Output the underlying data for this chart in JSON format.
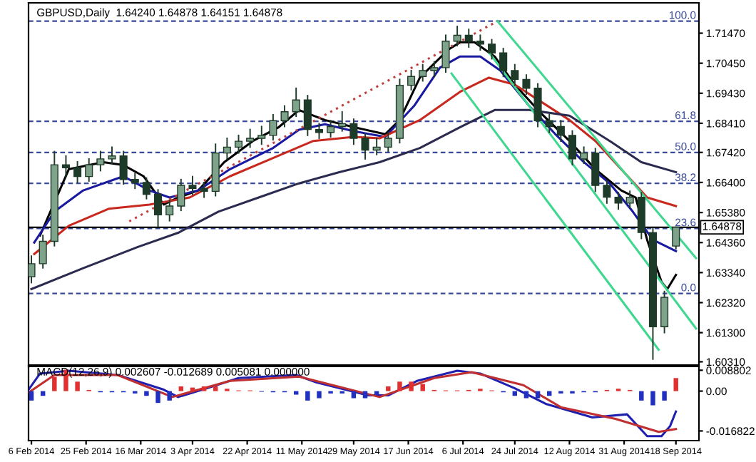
{
  "chart_data": [
    {
      "type": "candlestick",
      "title": "GBPUSD,Daily  1.64240 1.64878 1.64151 1.64878",
      "color": "#1e3a28",
      "x": [
        "2014-02-06",
        "2014-02-10",
        "2014-02-14",
        "2014-02-18",
        "2014-02-22",
        "2014-02-26",
        "2014-03-02",
        "2014-03-06",
        "2014-03-10",
        "2014-03-14",
        "2014-03-18",
        "2014-03-22",
        "2014-03-26",
        "2014-03-30",
        "2014-04-03",
        "2014-04-07",
        "2014-04-11",
        "2014-04-15",
        "2014-04-19",
        "2014-04-23",
        "2014-04-27",
        "2014-05-01",
        "2014-05-05",
        "2014-05-09",
        "2014-05-13",
        "2014-05-17",
        "2014-05-21",
        "2014-05-25",
        "2014-05-29",
        "2014-06-02",
        "2014-06-06",
        "2014-06-10",
        "2014-06-14",
        "2014-06-18",
        "2014-06-22",
        "2014-06-26",
        "2014-06-30",
        "2014-07-04",
        "2014-07-08",
        "2014-07-12",
        "2014-07-16",
        "2014-07-20",
        "2014-07-24",
        "2014-07-28",
        "2014-08-01",
        "2014-08-05",
        "2014-08-09",
        "2014-08-13",
        "2014-08-17",
        "2014-08-21",
        "2014-08-25",
        "2014-08-29",
        "2014-09-02",
        "2014-09-06",
        "2014-09-10",
        "2014-09-14",
        "2014-09-18"
      ],
      "ohlc": [
        [
          1.632,
          1.639,
          1.63,
          1.6364
        ],
        [
          1.6364,
          1.646,
          1.635,
          1.644
        ],
        [
          1.644,
          1.6745,
          1.6425,
          1.67
        ],
        [
          1.67,
          1.673,
          1.666,
          1.669
        ],
        [
          1.669,
          1.671,
          1.664,
          1.666
        ],
        [
          1.666,
          1.672,
          1.6645,
          1.67
        ],
        [
          1.67,
          1.6745,
          1.668,
          1.672
        ],
        [
          1.672,
          1.676,
          1.6705,
          1.673
        ],
        [
          1.673,
          1.6745,
          1.6635,
          1.665
        ],
        [
          1.665,
          1.667,
          1.662,
          1.664
        ],
        [
          1.664,
          1.6655,
          1.6585,
          1.66
        ],
        [
          1.66,
          1.6615,
          1.649,
          1.653
        ],
        [
          1.653,
          1.658,
          1.651,
          1.656
        ],
        [
          1.656,
          1.665,
          1.6545,
          1.663
        ],
        [
          1.663,
          1.666,
          1.66,
          1.662
        ],
        [
          1.662,
          1.664,
          1.659,
          1.661
        ],
        [
          1.661,
          1.677,
          1.6595,
          1.674
        ],
        [
          1.674,
          1.679,
          1.672,
          1.676
        ],
        [
          1.676,
          1.68,
          1.674,
          1.678
        ],
        [
          1.678,
          1.682,
          1.676,
          1.679
        ],
        [
          1.679,
          1.683,
          1.677,
          1.68
        ],
        [
          1.68,
          1.687,
          1.6785,
          1.685
        ],
        [
          1.685,
          1.69,
          1.683,
          1.688
        ],
        [
          1.688,
          1.696,
          1.6865,
          1.692
        ],
        [
          1.692,
          1.6935,
          1.68,
          1.682
        ],
        [
          1.682,
          1.684,
          1.679,
          1.681
        ],
        [
          1.681,
          1.685,
          1.6795,
          1.683
        ],
        [
          1.683,
          1.688,
          1.6815,
          1.684
        ],
        [
          1.684,
          1.6855,
          1.677,
          1.679
        ],
        [
          1.679,
          1.6805,
          1.672,
          1.675
        ],
        [
          1.675,
          1.679,
          1.6735,
          1.676
        ],
        [
          1.676,
          1.681,
          1.6745,
          1.679
        ],
        [
          1.679,
          1.699,
          1.6775,
          1.697
        ],
        [
          1.697,
          1.702,
          1.6955,
          1.7
        ],
        [
          1.7,
          1.704,
          1.6985,
          1.702
        ],
        [
          1.702,
          1.705,
          1.7,
          1.703
        ],
        [
          1.703,
          1.714,
          1.7015,
          1.712
        ],
        [
          1.712,
          1.717,
          1.7105,
          1.714
        ],
        [
          1.714,
          1.716,
          1.71,
          1.712
        ],
        [
          1.712,
          1.714,
          1.709,
          1.711
        ],
        [
          1.711,
          1.7125,
          1.706,
          1.708
        ],
        [
          1.708,
          1.7095,
          1.7,
          1.702
        ],
        [
          1.702,
          1.704,
          1.697,
          1.699
        ],
        [
          1.699,
          1.7005,
          1.694,
          1.696
        ],
        [
          1.696,
          1.6975,
          1.683,
          1.685
        ],
        [
          1.685,
          1.687,
          1.681,
          1.683
        ],
        [
          1.683,
          1.685,
          1.678,
          1.68
        ],
        [
          1.68,
          1.6815,
          1.67,
          1.672
        ],
        [
          1.672,
          1.676,
          1.6705,
          1.674
        ],
        [
          1.674,
          1.6755,
          1.661,
          1.663
        ],
        [
          1.663,
          1.6645,
          1.657,
          1.659
        ],
        [
          1.659,
          1.6605,
          1.655,
          1.657
        ],
        [
          1.657,
          1.661,
          1.6555,
          1.659
        ],
        [
          1.659,
          1.6605,
          1.645,
          1.647
        ],
        [
          1.647,
          1.6485,
          1.604,
          1.615
        ],
        [
          1.615,
          1.627,
          1.613,
          1.625
        ],
        [
          1.6424,
          1.64878,
          1.64151,
          1.64878
        ]
      ],
      "series": [
        {
          "type": "line",
          "color": "#000000",
          "x": [
            "2014-02-09",
            "2014-02-19",
            "2014-03-03",
            "2014-03-10",
            "2014-03-17",
            "2014-03-24",
            "2014-03-29",
            "2014-04-05",
            "2014-04-14",
            "2014-04-24",
            "2014-05-03",
            "2014-05-10",
            "2014-05-19",
            "2014-05-29",
            "2014-06-09",
            "2014-06-14",
            "2014-06-21",
            "2014-07-01",
            "2014-07-05",
            "2014-07-10",
            "2014-07-17",
            "2014-07-24",
            "2014-08-02",
            "2014-08-12",
            "2014-08-21",
            "2014-08-30",
            "2014-09-04",
            "2014-09-08",
            "2014-09-13",
            "2014-09-15",
            "2014-09-18"
          ],
          "values": [
            1.646,
            1.6685,
            1.6709,
            1.6699,
            1.6661,
            1.6565,
            1.6589,
            1.6613,
            1.6709,
            1.6781,
            1.6828,
            1.6886,
            1.6852,
            1.6828,
            1.6804,
            1.6852,
            1.6996,
            1.7092,
            1.7116,
            1.7116,
            1.7068,
            1.6972,
            1.6876,
            1.6781,
            1.6685,
            1.6613,
            1.6589,
            1.6445,
            1.6302,
            1.6278,
            1.6326
          ]
        },
        {
          "type": "line",
          "color": "#1a1aa0",
          "x": [
            "2014-02-07",
            "2014-02-14",
            "2014-02-24",
            "2014-03-10",
            "2014-03-19",
            "2014-03-26",
            "2014-04-05",
            "2014-04-16",
            "2014-05-01",
            "2014-05-10",
            "2014-05-19",
            "2014-05-29",
            "2014-06-09",
            "2014-06-19",
            "2014-06-28",
            "2014-07-05",
            "2014-07-12",
            "2014-07-19",
            "2014-07-29",
            "2014-08-07",
            "2014-08-17",
            "2014-08-26",
            "2014-09-03",
            "2014-09-10",
            "2014-09-18"
          ],
          "values": [
            1.6436,
            1.6541,
            1.6613,
            1.6661,
            1.6613,
            1.6589,
            1.6613,
            1.6685,
            1.6757,
            1.6819,
            1.6838,
            1.6814,
            1.6795,
            1.69,
            1.703,
            1.7068,
            1.7068,
            1.702,
            1.69,
            1.6805,
            1.6709,
            1.6637,
            1.6541,
            1.6445,
            1.6407
          ]
        },
        {
          "type": "line",
          "color": "#c8281e",
          "x": [
            "2014-02-07",
            "2014-02-19",
            "2014-03-05",
            "2014-03-19",
            "2014-04-02",
            "2014-04-16",
            "2014-05-01",
            "2014-05-15",
            "2014-05-29",
            "2014-06-07",
            "2014-06-21",
            "2014-07-05",
            "2014-07-15",
            "2014-07-24",
            "2014-08-02",
            "2014-08-12",
            "2014-08-21",
            "2014-08-30",
            "2014-09-08",
            "2014-09-18"
          ],
          "values": [
            1.6397,
            1.6493,
            1.6551,
            1.6565,
            1.6589,
            1.6661,
            1.6723,
            1.6781,
            1.6795,
            1.679,
            1.6852,
            1.6948,
            1.6996,
            1.6972,
            1.6915,
            1.6852,
            1.6781,
            1.6685,
            1.6589,
            1.656
          ]
        },
        {
          "type": "line",
          "color": "#2b2b4f",
          "x": [
            "2014-02-06",
            "2014-02-24",
            "2014-03-15",
            "2014-03-29",
            "2014-04-12",
            "2014-04-26",
            "2014-05-10",
            "2014-05-24",
            "2014-06-07",
            "2014-06-21",
            "2014-07-05",
            "2014-07-17",
            "2014-07-29",
            "2014-08-12",
            "2014-08-26",
            "2014-09-06",
            "2014-09-18"
          ],
          "values": [
            1.6278,
            1.6349,
            1.6421,
            1.6469,
            1.6541,
            1.6589,
            1.6637,
            1.6675,
            1.6709,
            1.6757,
            1.6828,
            1.6886,
            1.6886,
            1.6867,
            1.6781,
            1.6709,
            1.6675
          ]
        },
        {
          "type": "line",
          "color": "#c04040",
          "line_style": "dotted",
          "x": [
            "2014-03-12",
            "2014-07-18"
          ],
          "values": [
            1.6508,
            1.7188
          ]
        },
        {
          "type": "line",
          "color": "#40d890",
          "x": [
            "2014-07-18",
            "2014-09-25"
          ],
          "values": [
            1.7188,
            1.6383
          ]
        },
        {
          "type": "line",
          "color": "#40d890",
          "x": [
            "2014-07-15",
            "2014-09-25"
          ],
          "values": [
            1.7082,
            1.6144
          ]
        },
        {
          "type": "line",
          "color": "#40d890",
          "x": [
            "2014-07-02",
            "2014-09-12"
          ],
          "values": [
            1.701,
            1.6072
          ]
        }
      ],
      "ref_lines": [
        {
          "axis": "y",
          "value": 1.7188,
          "color": "#3a4a9a",
          "line_style": "dashed"
        },
        {
          "axis": "y",
          "value": 1.6848,
          "color": "#3a4a9a",
          "line_style": "dashed"
        },
        {
          "axis": "y",
          "value": 1.6742,
          "color": "#3a4a9a",
          "line_style": "dashed"
        },
        {
          "axis": "y",
          "value": 1.6637,
          "color": "#3a4a9a",
          "line_style": "dashed"
        },
        {
          "axis": "y",
          "value": 1.6484,
          "color": "#3a4a9a",
          "line_style": "dashed"
        },
        {
          "axis": "y",
          "value": 1.6263,
          "color": "#3a4a9a",
          "line_style": "dashed"
        },
        {
          "axis": "y",
          "value": 1.64878,
          "label": "1.64878",
          "color": "#000000",
          "line_style": "solid"
        }
      ],
      "annotations": [
        {
          "text": "100.0",
          "x": "2014-09-25",
          "y": 1.7188
        },
        {
          "text": "61.8",
          "x": "2014-09-25",
          "y": 1.6848
        },
        {
          "text": "50.0",
          "x": "2014-09-25",
          "y": 1.6742
        },
        {
          "text": "38.2",
          "x": "2014-09-25",
          "y": 1.6637
        },
        {
          "text": "23.6",
          "x": "2014-09-25",
          "y": 1.6484
        },
        {
          "text": "0.0",
          "x": "2014-09-25",
          "y": 1.6263
        }
      ],
      "xlim": [
        "2014-02-05",
        "2014-09-26"
      ],
      "ylim": [
        1.602,
        1.725
      ],
      "yticks": [
        {
          "value": 1.7147,
          "label": "1.71470"
        },
        {
          "value": 1.7045,
          "label": "1.70450"
        },
        {
          "value": 1.6943,
          "label": "1.69430"
        },
        {
          "value": 1.6841,
          "label": "1.68410"
        },
        {
          "value": 1.6742,
          "label": "1.67420"
        },
        {
          "value": 1.664,
          "label": "1.66400"
        },
        {
          "value": 1.6538,
          "label": "1.65380"
        },
        {
          "value": 1.6436,
          "label": "1.64360"
        },
        {
          "value": 1.6334,
          "label": "1.63340"
        },
        {
          "value": 1.6232,
          "label": "1.62320"
        },
        {
          "value": 1.613,
          "label": "1.61300"
        },
        {
          "value": 1.6031,
          "label": "1.60310"
        }
      ],
      "tick_labels": "y"
    },
    {
      "type": "bar",
      "title": "MACD(12,26,9) 0.002607 -0.012689 0.005081 0.000000",
      "x": [
        "2014-02-06",
        "2014-02-10",
        "2014-02-14",
        "2014-02-18",
        "2014-02-22",
        "2014-02-26",
        "2014-03-02",
        "2014-03-06",
        "2014-03-10",
        "2014-03-14",
        "2014-03-18",
        "2014-03-22",
        "2014-03-26",
        "2014-03-30",
        "2014-04-03",
        "2014-04-07",
        "2014-04-11",
        "2014-04-15",
        "2014-04-19",
        "2014-04-23",
        "2014-04-27",
        "2014-05-01",
        "2014-05-05",
        "2014-05-09",
        "2014-05-13",
        "2014-05-17",
        "2014-05-21",
        "2014-05-25",
        "2014-05-29",
        "2014-06-02",
        "2014-06-06",
        "2014-06-10",
        "2014-06-14",
        "2014-06-18",
        "2014-06-22",
        "2014-06-26",
        "2014-06-30",
        "2014-07-04",
        "2014-07-08",
        "2014-07-12",
        "2014-07-16",
        "2014-07-20",
        "2014-07-24",
        "2014-07-28",
        "2014-08-01",
        "2014-08-05",
        "2014-08-09",
        "2014-08-13",
        "2014-08-17",
        "2014-08-21",
        "2014-08-25",
        "2014-08-29",
        "2014-09-02",
        "2014-09-06",
        "2014-09-10",
        "2014-09-14",
        "2014-09-18"
      ],
      "values": [
        -0.004,
        -0.002,
        0.006,
        0.009,
        0.004,
        0.0005,
        -0.0005,
        -0.0005,
        -0.0005,
        -0.001,
        -0.002,
        -0.005,
        -0.004,
        0.002,
        0.0015,
        0.002,
        0.002,
        0.001,
        0.0003,
        0.0003,
        -0.0003,
        -0.0005,
        -0.0005,
        -0.0015,
        -0.004,
        -0.003,
        -0.001,
        -0.001,
        -0.003,
        -0.003,
        -0.0015,
        0.002,
        0.004,
        0.004,
        0.003,
        0.0005,
        0.0003,
        0.0003,
        0.0005,
        0.001,
        0.0003,
        -0.0005,
        -0.002,
        -0.003,
        -0.003,
        -0.002,
        -0.001,
        -0.001,
        -0.0005,
        -0.0005,
        0.0005,
        0.001,
        0.0005,
        -0.004,
        -0.006,
        -0.004,
        0.0055
      ],
      "colors": [
        "#2030c0",
        "#2030c0",
        "#e03030",
        "#e03030",
        "#e03030",
        "#e03030",
        "#2030c0",
        "#2030c0",
        "#2030c0",
        "#2030c0",
        "#2030c0",
        "#2030c0",
        "#2030c0",
        "#e03030",
        "#e03030",
        "#e03030",
        "#e03030",
        "#e03030",
        "#e03030",
        "#e03030",
        "#2030c0",
        "#2030c0",
        "#2030c0",
        "#2030c0",
        "#2030c0",
        "#2030c0",
        "#2030c0",
        "#2030c0",
        "#2030c0",
        "#2030c0",
        "#2030c0",
        "#e03030",
        "#e03030",
        "#e03030",
        "#e03030",
        "#e03030",
        "#e03030",
        "#e03030",
        "#e03030",
        "#e03030",
        "#e03030",
        "#2030c0",
        "#2030c0",
        "#2030c0",
        "#2030c0",
        "#2030c0",
        "#2030c0",
        "#2030c0",
        "#2030c0",
        "#2030c0",
        "#e03030",
        "#e03030",
        "#e03030",
        "#2030c0",
        "#2030c0",
        "#2030c0",
        "#e03030"
      ],
      "series": [
        {
          "type": "line",
          "color": "#2020b0",
          "x": [
            "2014-02-05",
            "2014-02-09",
            "2014-02-19",
            "2014-03-08",
            "2014-03-24",
            "2014-03-29",
            "2014-04-08",
            "2014-04-19",
            "2014-05-09",
            "2014-05-16",
            "2014-06-03",
            "2014-06-10",
            "2014-06-20",
            "2014-07-04",
            "2014-07-12",
            "2014-07-24",
            "2014-08-04",
            "2014-08-20",
            "2014-09-01",
            "2014-09-08",
            "2014-09-13",
            "2014-09-16",
            "2014-09-18"
          ],
          "values": [
            0.0006,
            0.0074,
            0.0086,
            0.0068,
            0.0006,
            -0.0025,
            0.0012,
            0.0055,
            0.0068,
            0.0037,
            -0.0018,
            -0.0018,
            0.0043,
            0.0086,
            0.0074,
            0.0012,
            -0.0055,
            -0.0111,
            -0.0098,
            -0.019,
            -0.019,
            -0.0147,
            -0.0086
          ]
        },
        {
          "type": "line",
          "color": "#c03030",
          "x": [
            "2014-02-05",
            "2014-02-14",
            "2014-03-08",
            "2014-03-27",
            "2014-04-16",
            "2014-05-10",
            "2014-06-07",
            "2014-06-26",
            "2014-07-09",
            "2014-07-27",
            "2014-08-09",
            "2014-08-28",
            "2014-09-12",
            "2014-09-18"
          ],
          "values": [
            -0.0006,
            0.0068,
            0.0068,
            -0.0025,
            0.0043,
            0.0061,
            -0.0025,
            0.0055,
            0.008,
            0.0025,
            -0.0068,
            -0.0117,
            -0.0172,
            -0.016
          ]
        }
      ],
      "xlim": [
        "2014-02-05",
        "2014-09-26"
      ],
      "ylim": [
        -0.0209,
        0.0104
      ],
      "yticks": [
        {
          "value": 0.008802,
          "label": "0.008802"
        },
        {
          "value": 0,
          "label": "0.00"
        },
        {
          "value": -0.016822,
          "label": "-0.016822"
        }
      ],
      "xticks": [
        {
          "value": "2014-02-06",
          "label": "6 Feb 2014"
        },
        {
          "value": "2014-02-25",
          "label": "25 Feb 2014"
        },
        {
          "value": "2014-03-16",
          "label": "16 Mar 2014"
        },
        {
          "value": "2014-04-03",
          "label": "3 Apr 2014"
        },
        {
          "value": "2014-04-22",
          "label": "22 Apr 2014"
        },
        {
          "value": "2014-05-11",
          "label": "11 May 2014"
        },
        {
          "value": "2014-05-29",
          "label": "29 May 2014"
        },
        {
          "value": "2014-06-17",
          "label": "17 Jun 2014"
        },
        {
          "value": "2014-07-06",
          "label": "6 Jul 2014"
        },
        {
          "value": "2014-07-24",
          "label": "24 Jul 2014"
        },
        {
          "value": "2014-08-12",
          "label": "12 Aug 2014"
        },
        {
          "value": "2014-08-31",
          "label": "31 Aug 2014"
        },
        {
          "value": "2014-09-18",
          "label": "18 Sep 2014"
        }
      ]
    }
  ]
}
